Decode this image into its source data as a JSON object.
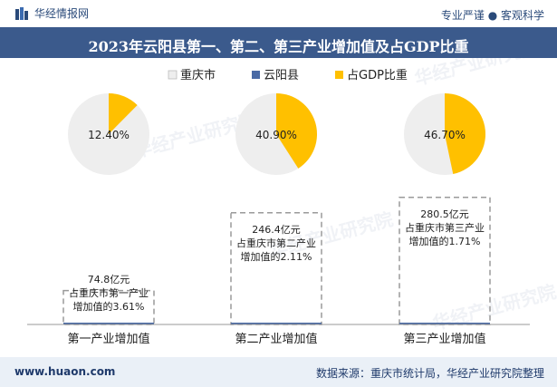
{
  "header": {
    "brand": "华经情报网",
    "tagline": "专业严谨 ● 客观科学"
  },
  "footer": {
    "website": "www.huaon.com",
    "source": "数据来源：重庆市统计局，华经产业研究院整理"
  },
  "watermark": "华经产业研究院",
  "colors": {
    "title_bg": "#3b5a8c",
    "chongqing": "#eeeeee",
    "yunyang": "#4a6aa5",
    "gdp_share": "#ffc000",
    "dashed": "#9a9a9a",
    "footer_bg": "#eaf0f7"
  },
  "chart_data": {
    "type": "bar",
    "title": "2023年云阳县第一、第二、第三产业增加值及占GDP比重",
    "legend": [
      "重庆市",
      "云阳县",
      "占GDP比重"
    ],
    "legend_position": "top-center",
    "categories": [
      "第一产业增加值",
      "第二产业增加值",
      "第三产业增加值"
    ],
    "series": [
      {
        "name": "云阳县",
        "unit": "亿元",
        "values": [
          74.8,
          246.4,
          280.5
        ]
      },
      {
        "name": "占重庆市比重",
        "unit": "%",
        "values": [
          3.61,
          2.11,
          1.71
        ]
      },
      {
        "name": "占GDP比重",
        "unit": "%",
        "values": [
          12.4,
          40.9,
          46.7
        ]
      }
    ],
    "pie_labels": [
      "12.40%",
      "40.90%",
      "46.70%"
    ],
    "bar_labels": [
      [
        "74.8亿元",
        "占重庆市第一产业",
        "增加值的3.61%"
      ],
      [
        "246.4亿元",
        "占重庆市第二产业",
        "增加值的2.11%"
      ],
      [
        "280.5亿元",
        "占重庆市第三产业",
        "增加值的1.71%"
      ]
    ],
    "ylim": [
      0,
      300
    ],
    "grid": false
  }
}
